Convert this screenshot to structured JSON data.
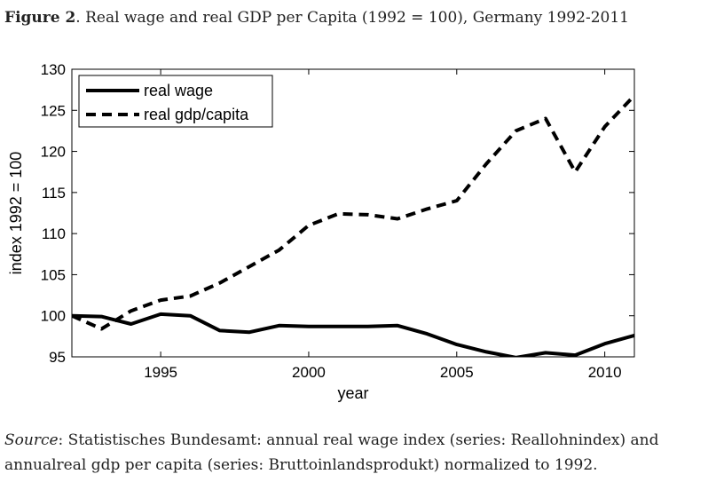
{
  "figure": {
    "label": "Figure 2",
    "title": ".  Real wage and real GDP per Capita (1992 = 100), Germany 1992-2011"
  },
  "source": {
    "label": "Source",
    "text": ": Statistisches Bundesamt: annual real wage index (series: Reallohnindex) and annualreal gdp per capita (series: Bruttoinlandsprodukt) normalized to 1992."
  },
  "chart_data": {
    "type": "line",
    "xlabel": "year",
    "ylabel": "index 1992 = 100",
    "xlim": [
      1992,
      2011
    ],
    "ylim": [
      95,
      130
    ],
    "xticks": [
      1995,
      2000,
      2005,
      2010
    ],
    "yticks": [
      95,
      100,
      105,
      110,
      115,
      120,
      125,
      130
    ],
    "grid": false,
    "legend_position": "top-left",
    "x": [
      1992,
      1993,
      1994,
      1995,
      1996,
      1997,
      1998,
      1999,
      2000,
      2001,
      2002,
      2003,
      2004,
      2005,
      2006,
      2007,
      2008,
      2009,
      2010,
      2011
    ],
    "series": [
      {
        "name": "real wage",
        "style": "solid",
        "color": "#000000",
        "values": [
          100.0,
          99.9,
          99.0,
          100.2,
          100.0,
          98.2,
          98.0,
          98.8,
          98.7,
          98.7,
          98.7,
          98.8,
          97.8,
          96.5,
          95.6,
          94.9,
          95.5,
          95.2,
          96.6,
          97.6
        ]
      },
      {
        "name": "real gdp/capita",
        "style": "dashed",
        "color": "#000000",
        "values": [
          100.0,
          98.4,
          100.6,
          101.9,
          102.4,
          104.0,
          106.0,
          108.0,
          111.0,
          112.4,
          112.3,
          111.8,
          113.0,
          114.0,
          118.5,
          122.5,
          124.0,
          117.5,
          123.0,
          126.8
        ]
      }
    ]
  }
}
